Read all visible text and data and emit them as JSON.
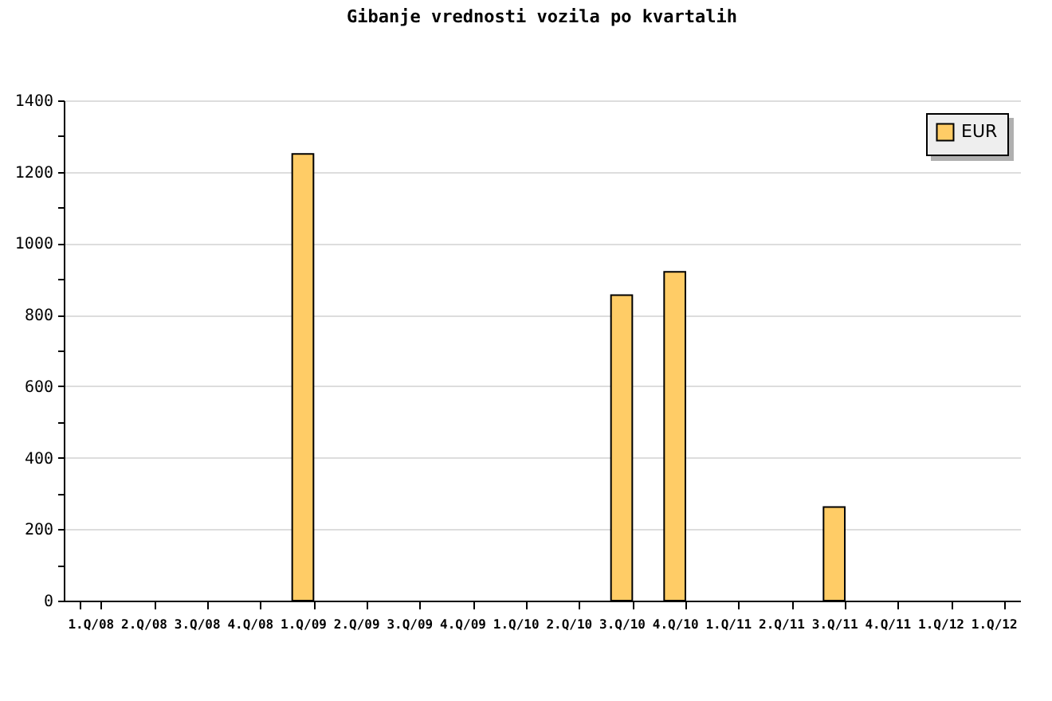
{
  "chart_data": {
    "type": "bar",
    "title": "Gibanje vrednosti vozila po kvartalih",
    "categories": [
      "1.Q/08",
      "2.Q/08",
      "3.Q/08",
      "4.Q/08",
      "1.Q/09",
      "2.Q/09",
      "3.Q/09",
      "4.Q/09",
      "1.Q/10",
      "2.Q/10",
      "3.Q/10",
      "4.Q/10",
      "1.Q/11",
      "2.Q/11",
      "3.Q/11",
      "4.Q/11",
      "1.Q/12",
      "1.Q/12"
    ],
    "series": [
      {
        "name": "EUR",
        "color": "#ffcc66",
        "values": [
          null,
          null,
          null,
          null,
          1250,
          null,
          null,
          null,
          null,
          null,
          855,
          920,
          null,
          null,
          262,
          null,
          null,
          null
        ]
      }
    ],
    "ylim": [
      0,
      1400
    ],
    "yticks": [
      0,
      {
        "value": 100,
        "label": null
      },
      200,
      {
        "value": 300,
        "label": null
      },
      400,
      {
        "value": 500,
        "label": null
      },
      600,
      {
        "value": 700,
        "label": null
      },
      800,
      {
        "value": 900,
        "label": null
      },
      1000,
      {
        "value": 1100,
        "label": null
      },
      1200,
      {
        "value": 1300,
        "label": null
      },
      1400
    ],
    "grid": "y",
    "legend": "top right"
  }
}
